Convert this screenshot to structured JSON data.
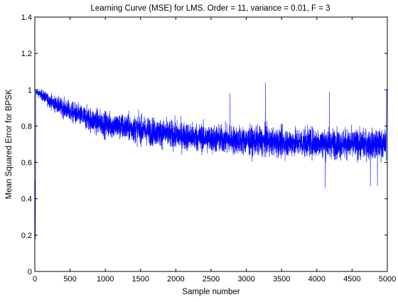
{
  "chart_data": {
    "type": "line",
    "title": "Learning Curve (MSE) for LMS. Order = 11, variance = 0.01, F = 3",
    "xlabel": "Sample number",
    "ylabel": "Mean Squared Error for BPSK",
    "xlim": [
      0,
      5000
    ],
    "ylim": [
      0,
      1.4
    ],
    "x_ticks": [
      0,
      500,
      1000,
      1500,
      2000,
      2500,
      3000,
      3500,
      4000,
      4500,
      5000
    ],
    "x_tick_labels": [
      "0",
      "500",
      "1000",
      "1500",
      "2000",
      "2500",
      "3000",
      "3500",
      "4000",
      "4500",
      "5000"
    ],
    "y_ticks": [
      0,
      0.2,
      0.4,
      0.6,
      0.8,
      1,
      1.2,
      1.4
    ],
    "y_tick_labels": [
      "0",
      "0.2",
      "0.4",
      "0.6",
      "0.8",
      "1",
      "1.2",
      "1.4"
    ],
    "grid": false,
    "line_color": "#0000ff",
    "series": [
      {
        "envelope_x": [
          0,
          12,
          100,
          250,
          500,
          750,
          1000,
          1500,
          2000,
          2500,
          3000,
          3500,
          4000,
          4500,
          4980
        ],
        "envelope_center": [
          0.99,
          0.99,
          0.97,
          0.93,
          0.88,
          0.84,
          0.81,
          0.78,
          0.75,
          0.73,
          0.72,
          0.71,
          0.71,
          0.7,
          0.7
        ],
        "envelope_low": [
          0.96,
          0.96,
          0.9,
          0.83,
          0.76,
          0.7,
          0.66,
          0.63,
          0.6,
          0.58,
          0.57,
          0.56,
          0.55,
          0.55,
          0.55
        ],
        "envelope_high": [
          1.02,
          1.02,
          1.02,
          1.0,
          0.99,
          0.97,
          0.95,
          0.94,
          0.92,
          0.9,
          0.89,
          0.88,
          0.88,
          0.88,
          0.88
        ],
        "spikes": [
          {
            "x": 3270,
            "y": 1.04
          },
          {
            "x": 2770,
            "y": 0.98
          },
          {
            "x": 4180,
            "y": 0.99
          },
          {
            "x": 4120,
            "y": 0.46
          },
          {
            "x": 4760,
            "y": 0.47
          },
          {
            "x": 4860,
            "y": 0.47
          }
        ],
        "initial_points": [
          {
            "x": 0,
            "y": 0
          },
          {
            "x": 4,
            "y": 0.5
          },
          {
            "x": 8,
            "y": 0.18
          },
          {
            "x": 12,
            "y": 0.99
          }
        ],
        "final_points": [
          {
            "x": 4985,
            "y": 0.7
          },
          {
            "x": 4990,
            "y": 1.0
          },
          {
            "x": 5000,
            "y": 1.0
          }
        ]
      }
    ]
  }
}
